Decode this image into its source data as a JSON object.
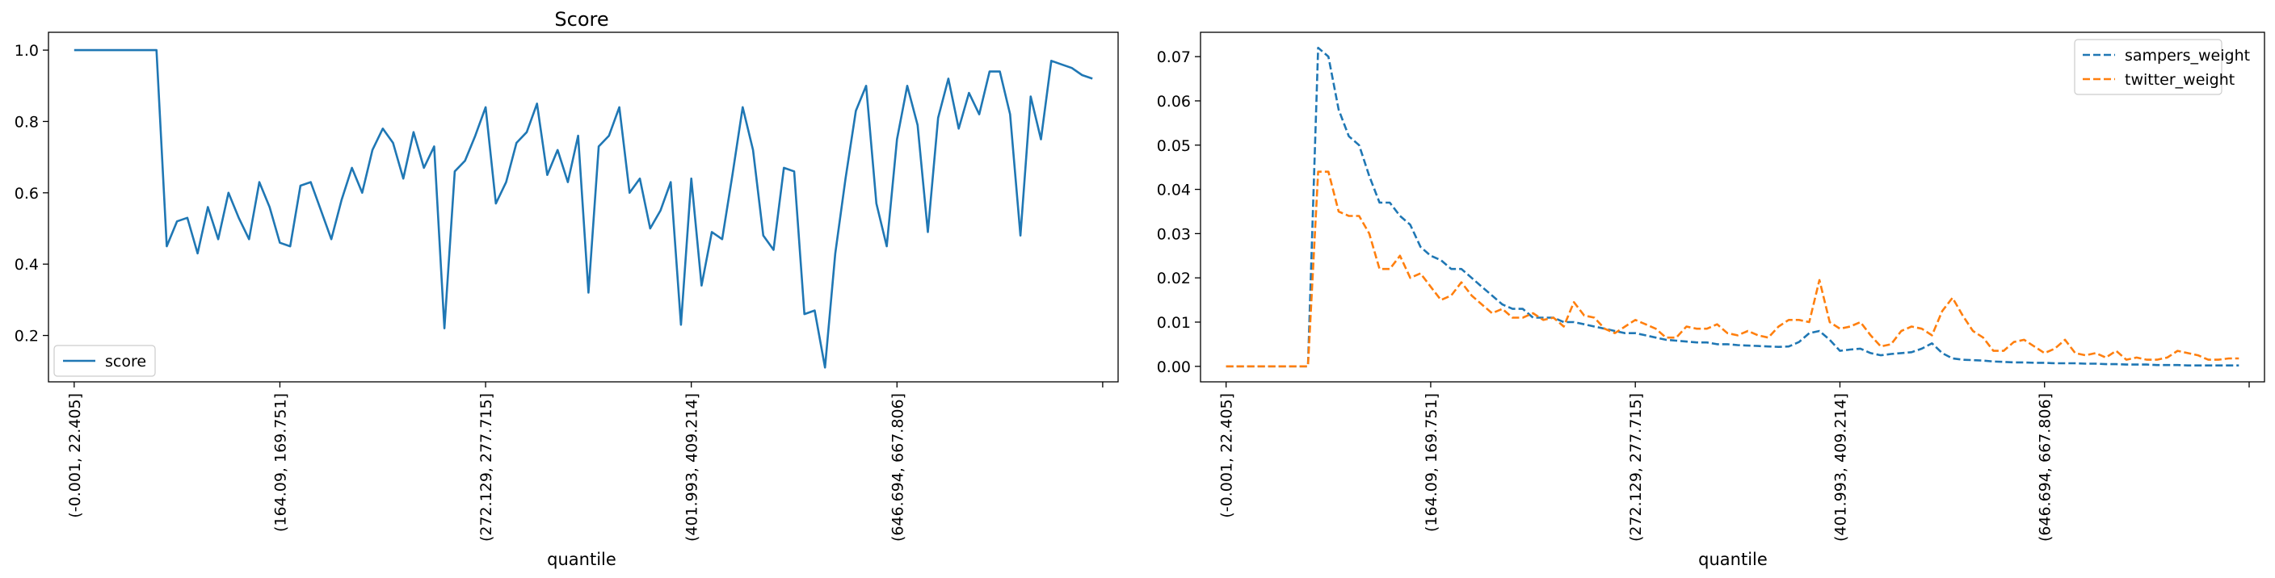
{
  "chart_data": [
    {
      "type": "line",
      "title": "Score",
      "xlabel": "quantile",
      "ylabel": "",
      "ylim": [
        0.07,
        1.05
      ],
      "yticks": [
        0.2,
        0.4,
        0.6,
        0.8,
        1.0
      ],
      "ytick_labels": [
        "0.2",
        "0.4",
        "0.6",
        "0.8",
        "1.0"
      ],
      "xlim": [
        -2.5,
        101.5
      ],
      "xticks": [
        0,
        20,
        40,
        60,
        80,
        100
      ],
      "xtick_labels": [
        "(-0.001, 22.405]",
        "(164.09, 169.751]",
        "(272.129, 277.715]",
        "(401.993, 409.214]",
        "(646.694, 667.806]",
        ""
      ],
      "legend_position": "lower left",
      "series": [
        {
          "name": "score",
          "color": "#1f77b4",
          "style": "solid",
          "values": [
            1.0,
            1.0,
            1.0,
            1.0,
            1.0,
            1.0,
            1.0,
            1.0,
            1.0,
            0.45,
            0.52,
            0.53,
            0.43,
            0.56,
            0.47,
            0.6,
            0.53,
            0.47,
            0.63,
            0.56,
            0.46,
            0.45,
            0.62,
            0.63,
            0.55,
            0.47,
            0.58,
            0.67,
            0.6,
            0.72,
            0.78,
            0.74,
            0.64,
            0.77,
            0.67,
            0.73,
            0.22,
            0.66,
            0.69,
            0.76,
            0.84,
            0.57,
            0.63,
            0.74,
            0.77,
            0.85,
            0.65,
            0.72,
            0.63,
            0.76,
            0.32,
            0.73,
            0.76,
            0.84,
            0.6,
            0.64,
            0.5,
            0.55,
            0.63,
            0.23,
            0.64,
            0.34,
            0.49,
            0.47,
            0.65,
            0.84,
            0.72,
            0.48,
            0.44,
            0.67,
            0.66,
            0.26,
            0.27,
            0.11,
            0.43,
            0.64,
            0.83,
            0.9,
            0.57,
            0.45,
            0.75,
            0.9,
            0.79,
            0.49,
            0.81,
            0.92,
            0.78,
            0.88,
            0.82,
            0.94,
            0.94,
            0.82,
            0.48,
            0.87,
            0.75,
            0.97,
            0.96,
            0.95,
            0.93,
            0.92
          ]
        }
      ]
    },
    {
      "type": "line",
      "title": "",
      "xlabel": "quantile",
      "ylabel": "",
      "ylim": [
        -0.0035,
        0.0755
      ],
      "yticks": [
        0.0,
        0.01,
        0.02,
        0.03,
        0.04,
        0.05,
        0.06,
        0.07
      ],
      "ytick_labels": [
        "0.00",
        "0.01",
        "0.02",
        "0.03",
        "0.04",
        "0.05",
        "0.06",
        "0.07"
      ],
      "xlim": [
        -2.5,
        101.5
      ],
      "xticks": [
        0,
        20,
        40,
        60,
        80,
        100
      ],
      "xtick_labels": [
        "(-0.001, 22.405]",
        "(164.09, 169.751]",
        "(272.129, 277.715]",
        "(401.993, 409.214]",
        "(646.694, 667.806]",
        ""
      ],
      "legend_position": "upper right",
      "series": [
        {
          "name": "sampers_weight",
          "color": "#1f77b4",
          "style": "dashed",
          "values": [
            0.0,
            0.0,
            0.0,
            0.0,
            0.0,
            0.0,
            0.0,
            0.0,
            0.0,
            0.072,
            0.07,
            0.058,
            0.052,
            0.05,
            0.043,
            0.037,
            0.037,
            0.034,
            0.032,
            0.027,
            0.025,
            0.024,
            0.022,
            0.022,
            0.02,
            0.018,
            0.016,
            0.014,
            0.013,
            0.013,
            0.011,
            0.011,
            0.011,
            0.01,
            0.01,
            0.0095,
            0.009,
            0.0085,
            0.008,
            0.0075,
            0.0075,
            0.007,
            0.0065,
            0.006,
            0.0058,
            0.0056,
            0.0054,
            0.0054,
            0.005,
            0.005,
            0.0048,
            0.0047,
            0.0046,
            0.0045,
            0.0044,
            0.0045,
            0.0055,
            0.0075,
            0.008,
            0.006,
            0.0035,
            0.0038,
            0.004,
            0.003,
            0.0025,
            0.0028,
            0.003,
            0.0032,
            0.004,
            0.0052,
            0.003,
            0.0018,
            0.0015,
            0.0014,
            0.0013,
            0.0011,
            0.001,
            0.0009,
            0.0009,
            0.0008,
            0.0008,
            0.0007,
            0.0007,
            0.0007,
            0.0006,
            0.0006,
            0.0005,
            0.0005,
            0.0004,
            0.0004,
            0.0004,
            0.0003,
            0.0003,
            0.0003,
            0.0002,
            0.0002,
            0.0002,
            0.0002,
            0.0002,
            0.0002
          ]
        },
        {
          "name": "twitter_weight",
          "color": "#ff7f0e",
          "style": "dashed",
          "values": [
            0.0,
            0.0,
            0.0,
            0.0,
            0.0,
            0.0,
            0.0,
            0.0,
            0.0,
            0.044,
            0.044,
            0.035,
            0.034,
            0.034,
            0.03,
            0.022,
            0.022,
            0.025,
            0.02,
            0.021,
            0.018,
            0.015,
            0.016,
            0.019,
            0.016,
            0.014,
            0.012,
            0.013,
            0.011,
            0.011,
            0.012,
            0.0105,
            0.011,
            0.009,
            0.0145,
            0.0115,
            0.011,
            0.0085,
            0.0075,
            0.009,
            0.0105,
            0.0095,
            0.0085,
            0.0065,
            0.0065,
            0.009,
            0.0085,
            0.0085,
            0.0095,
            0.0075,
            0.007,
            0.008,
            0.007,
            0.0065,
            0.009,
            0.0105,
            0.0105,
            0.01,
            0.0195,
            0.01,
            0.0085,
            0.009,
            0.01,
            0.007,
            0.0045,
            0.005,
            0.008,
            0.009,
            0.0085,
            0.007,
            0.0125,
            0.0155,
            0.0115,
            0.008,
            0.0065,
            0.0035,
            0.0035,
            0.0055,
            0.006,
            0.0045,
            0.003,
            0.004,
            0.006,
            0.003,
            0.0025,
            0.003,
            0.002,
            0.0035,
            0.0015,
            0.002,
            0.0015,
            0.0015,
            0.002,
            0.0035,
            0.003,
            0.0025,
            0.0015,
            0.0015,
            0.0018,
            0.0018
          ]
        }
      ]
    }
  ]
}
